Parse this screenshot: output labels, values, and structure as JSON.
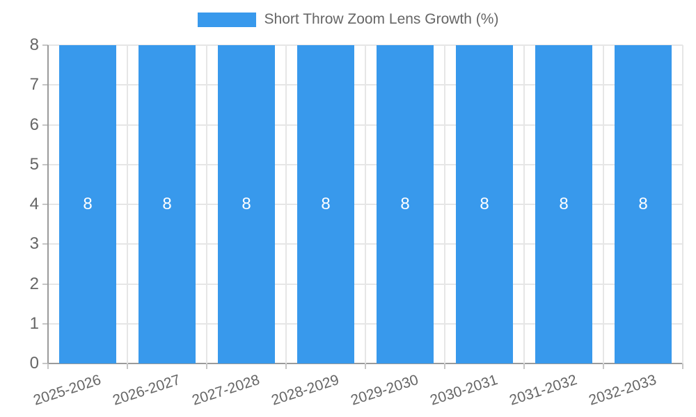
{
  "chart_data": {
    "type": "bar",
    "legend_label": "Short Throw Zoom Lens Growth (%)",
    "categories": [
      "2025-2026",
      "2026-2027",
      "2027-2028",
      "2028-2029",
      "2029-2030",
      "2030-2031",
      "2031-2032",
      "2032-2033"
    ],
    "series": [
      {
        "name": "Short Throw Zoom Lens Growth (%)",
        "values": [
          8,
          8,
          8,
          8,
          8,
          8,
          8,
          8
        ]
      }
    ],
    "bar_labels": [
      "8",
      "8",
      "8",
      "8",
      "8",
      "8",
      "8",
      "8"
    ],
    "ylim": [
      0,
      8
    ],
    "yticks": [
      "0",
      "1",
      "2",
      "3",
      "4",
      "5",
      "6",
      "7",
      "8"
    ],
    "xlabel": "",
    "ylabel": "",
    "legend_position": "top",
    "grid": true,
    "colors": {
      "bar": "#3899EC",
      "grid": "#E6E6E6",
      "axis": "#9A9A9A",
      "tick": "#C6C6C6",
      "tick_text": "#666666",
      "legend_text": "#666666",
      "bar_label": "#FFFFFF",
      "background": "#FFFFFF"
    }
  }
}
